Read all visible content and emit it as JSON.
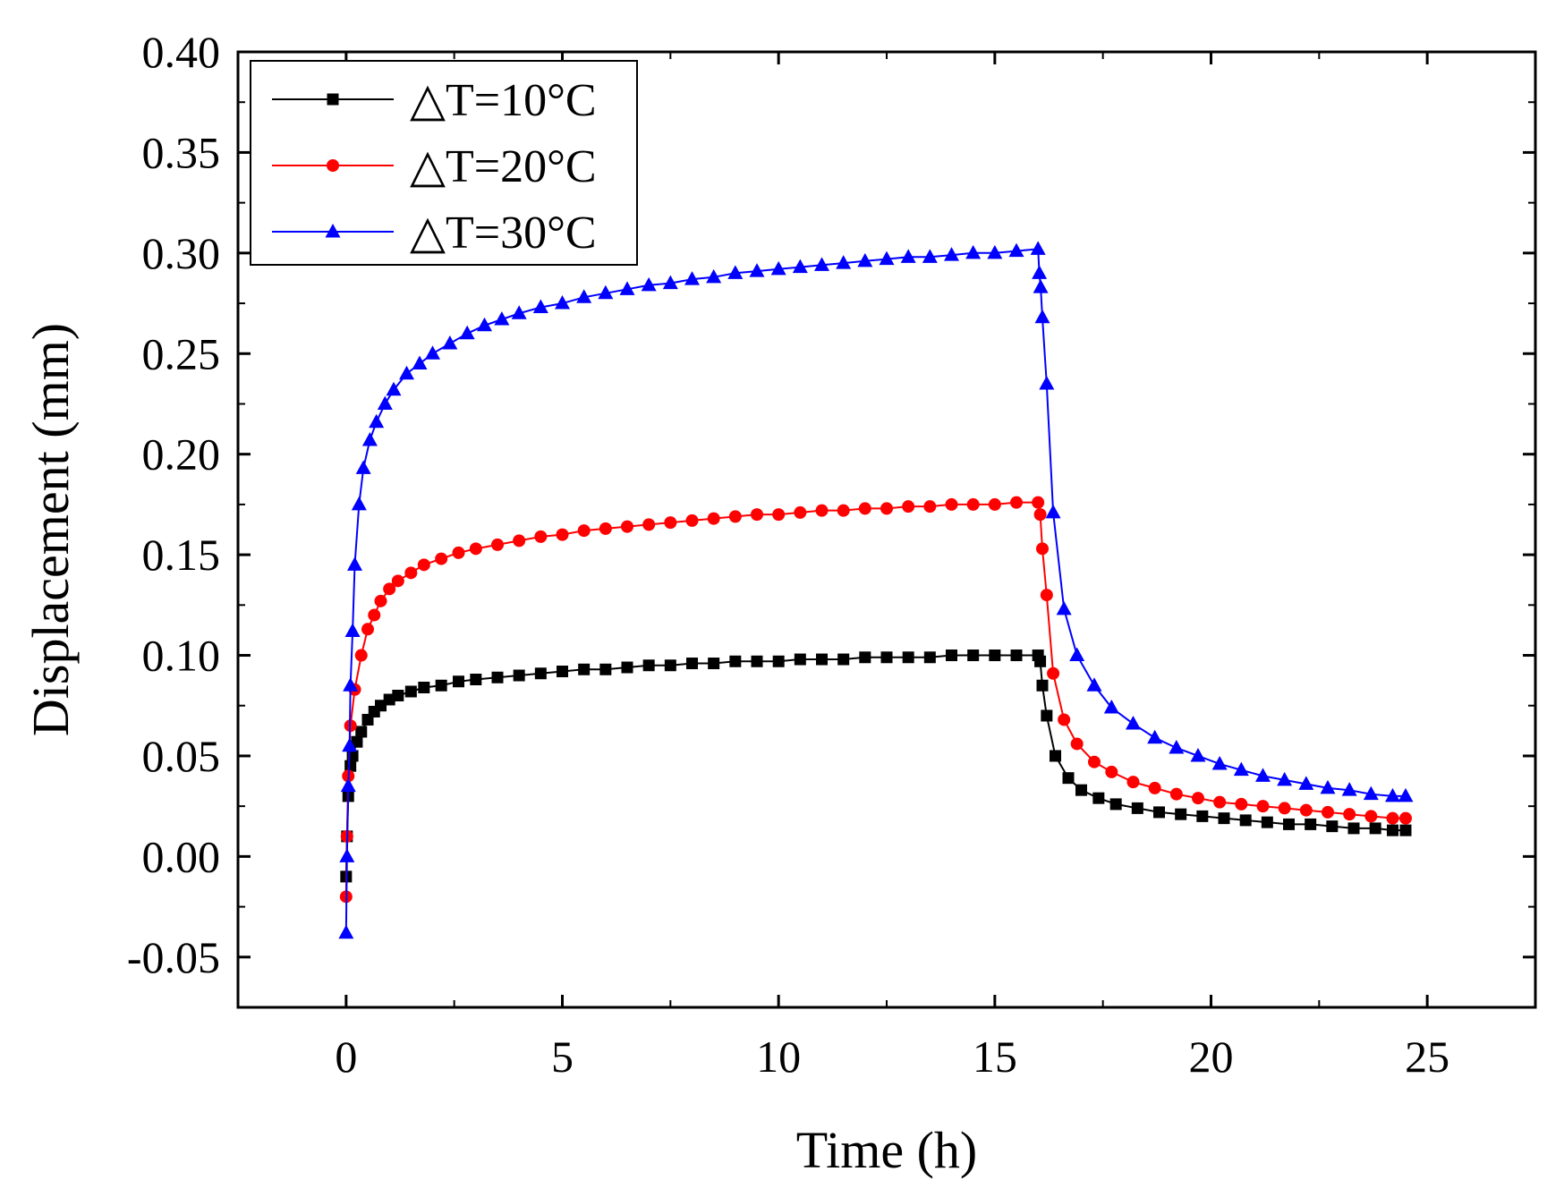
{
  "chart_data": {
    "type": "line",
    "title": "",
    "xlabel": "Time (h)",
    "ylabel": "Displacement (mm)",
    "xlim": [
      -2.5,
      27.5
    ],
    "ylim": [
      -0.075,
      0.4
    ],
    "xticks": [
      0,
      5,
      10,
      15,
      20,
      25
    ],
    "xtick_labels": [
      "0",
      "5",
      "10",
      "15",
      "20",
      "25"
    ],
    "yticks": [
      -0.05,
      0.0,
      0.05,
      0.1,
      0.15,
      0.2,
      0.25,
      0.3,
      0.35,
      0.4
    ],
    "ytick_labels": [
      "-0.05",
      "0.00",
      "0.05",
      "0.10",
      "0.15",
      "0.20",
      "0.25",
      "0.30",
      "0.35",
      "0.40"
    ],
    "grid": false,
    "legend_position": "top-left",
    "series": [
      {
        "name": "△T=10°C",
        "color": "#000000",
        "marker": "square",
        "x": [
          0,
          0.02,
          0.05,
          0.1,
          0.15,
          0.25,
          0.35,
          0.5,
          0.65,
          0.8,
          1,
          1.2,
          1.5,
          1.8,
          2.2,
          2.6,
          3,
          3.5,
          4,
          4.5,
          5,
          5.5,
          6,
          6.5,
          7,
          7.5,
          8,
          8.5,
          9,
          9.5,
          10,
          10.5,
          11,
          11.5,
          12,
          12.5,
          13,
          13.5,
          14,
          14.5,
          15,
          15.5,
          16,
          16.05,
          16.1,
          16.2,
          16.4,
          16.7,
          17,
          17.4,
          17.8,
          18.3,
          18.8,
          19.3,
          19.8,
          20.3,
          20.8,
          21.3,
          21.8,
          22.3,
          22.8,
          23.3,
          23.8,
          24.2,
          24.5
        ],
        "y": [
          -0.01,
          0.01,
          0.03,
          0.045,
          0.05,
          0.057,
          0.062,
          0.068,
          0.072,
          0.075,
          0.078,
          0.08,
          0.082,
          0.084,
          0.085,
          0.087,
          0.088,
          0.089,
          0.09,
          0.091,
          0.092,
          0.093,
          0.093,
          0.094,
          0.095,
          0.095,
          0.096,
          0.096,
          0.097,
          0.097,
          0.097,
          0.098,
          0.098,
          0.098,
          0.099,
          0.099,
          0.099,
          0.099,
          0.1,
          0.1,
          0.1,
          0.1,
          0.1,
          0.097,
          0.085,
          0.07,
          0.05,
          0.039,
          0.033,
          0.029,
          0.026,
          0.024,
          0.022,
          0.021,
          0.02,
          0.019,
          0.018,
          0.017,
          0.016,
          0.016,
          0.015,
          0.014,
          0.014,
          0.013,
          0.013
        ]
      },
      {
        "name": "△T=20°C",
        "color": "#ff0000",
        "marker": "circle",
        "x": [
          0,
          0.02,
          0.05,
          0.1,
          0.2,
          0.35,
          0.5,
          0.65,
          0.8,
          1,
          1.2,
          1.5,
          1.8,
          2.2,
          2.6,
          3,
          3.5,
          4,
          4.5,
          5,
          5.5,
          6,
          6.5,
          7,
          7.5,
          8,
          8.5,
          9,
          9.5,
          10,
          10.5,
          11,
          11.5,
          12,
          12.5,
          13,
          13.5,
          14,
          14.5,
          15,
          15.5,
          16,
          16.05,
          16.1,
          16.2,
          16.35,
          16.6,
          16.9,
          17.3,
          17.7,
          18.2,
          18.7,
          19.2,
          19.7,
          20.2,
          20.7,
          21.2,
          21.7,
          22.2,
          22.7,
          23.2,
          23.7,
          24.2,
          24.5
        ],
        "y": [
          -0.02,
          0.01,
          0.04,
          0.065,
          0.083,
          0.1,
          0.113,
          0.12,
          0.127,
          0.133,
          0.137,
          0.141,
          0.145,
          0.148,
          0.151,
          0.153,
          0.155,
          0.157,
          0.159,
          0.16,
          0.162,
          0.163,
          0.164,
          0.165,
          0.166,
          0.167,
          0.168,
          0.169,
          0.17,
          0.17,
          0.171,
          0.172,
          0.172,
          0.173,
          0.173,
          0.174,
          0.174,
          0.175,
          0.175,
          0.175,
          0.176,
          0.176,
          0.17,
          0.153,
          0.13,
          0.091,
          0.068,
          0.056,
          0.047,
          0.042,
          0.037,
          0.034,
          0.031,
          0.029,
          0.027,
          0.026,
          0.025,
          0.024,
          0.023,
          0.022,
          0.021,
          0.02,
          0.019,
          0.019
        ]
      },
      {
        "name": "△T=30°C",
        "color": "#0000ff",
        "marker": "triangle",
        "x": [
          0,
          0.02,
          0.05,
          0.08,
          0.1,
          0.15,
          0.2,
          0.3,
          0.4,
          0.55,
          0.7,
          0.9,
          1.1,
          1.4,
          1.7,
          2,
          2.4,
          2.8,
          3.2,
          3.6,
          4,
          4.5,
          5,
          5.5,
          6,
          6.5,
          7,
          7.5,
          8,
          8.5,
          9,
          9.5,
          10,
          10.5,
          11,
          11.5,
          12,
          12.5,
          13,
          13.5,
          14,
          14.5,
          15,
          15.5,
          16,
          16.03,
          16.06,
          16.1,
          16.2,
          16.35,
          16.6,
          16.9,
          17.3,
          17.7,
          18.2,
          18.7,
          19.2,
          19.7,
          20.2,
          20.7,
          21.2,
          21.7,
          22.2,
          22.7,
          23.2,
          23.7,
          24.2,
          24.5
        ],
        "y": [
          -0.038,
          0.0,
          0.035,
          0.055,
          0.085,
          0.112,
          0.145,
          0.175,
          0.193,
          0.207,
          0.216,
          0.225,
          0.232,
          0.24,
          0.245,
          0.25,
          0.255,
          0.26,
          0.264,
          0.267,
          0.27,
          0.273,
          0.275,
          0.278,
          0.28,
          0.282,
          0.284,
          0.285,
          0.287,
          0.288,
          0.29,
          0.291,
          0.292,
          0.293,
          0.294,
          0.295,
          0.296,
          0.297,
          0.298,
          0.298,
          0.299,
          0.3,
          0.3,
          0.301,
          0.302,
          0.29,
          0.283,
          0.268,
          0.235,
          0.171,
          0.123,
          0.1,
          0.085,
          0.074,
          0.066,
          0.059,
          0.054,
          0.05,
          0.046,
          0.043,
          0.04,
          0.038,
          0.036,
          0.034,
          0.033,
          0.031,
          0.03,
          0.03
        ]
      }
    ]
  }
}
